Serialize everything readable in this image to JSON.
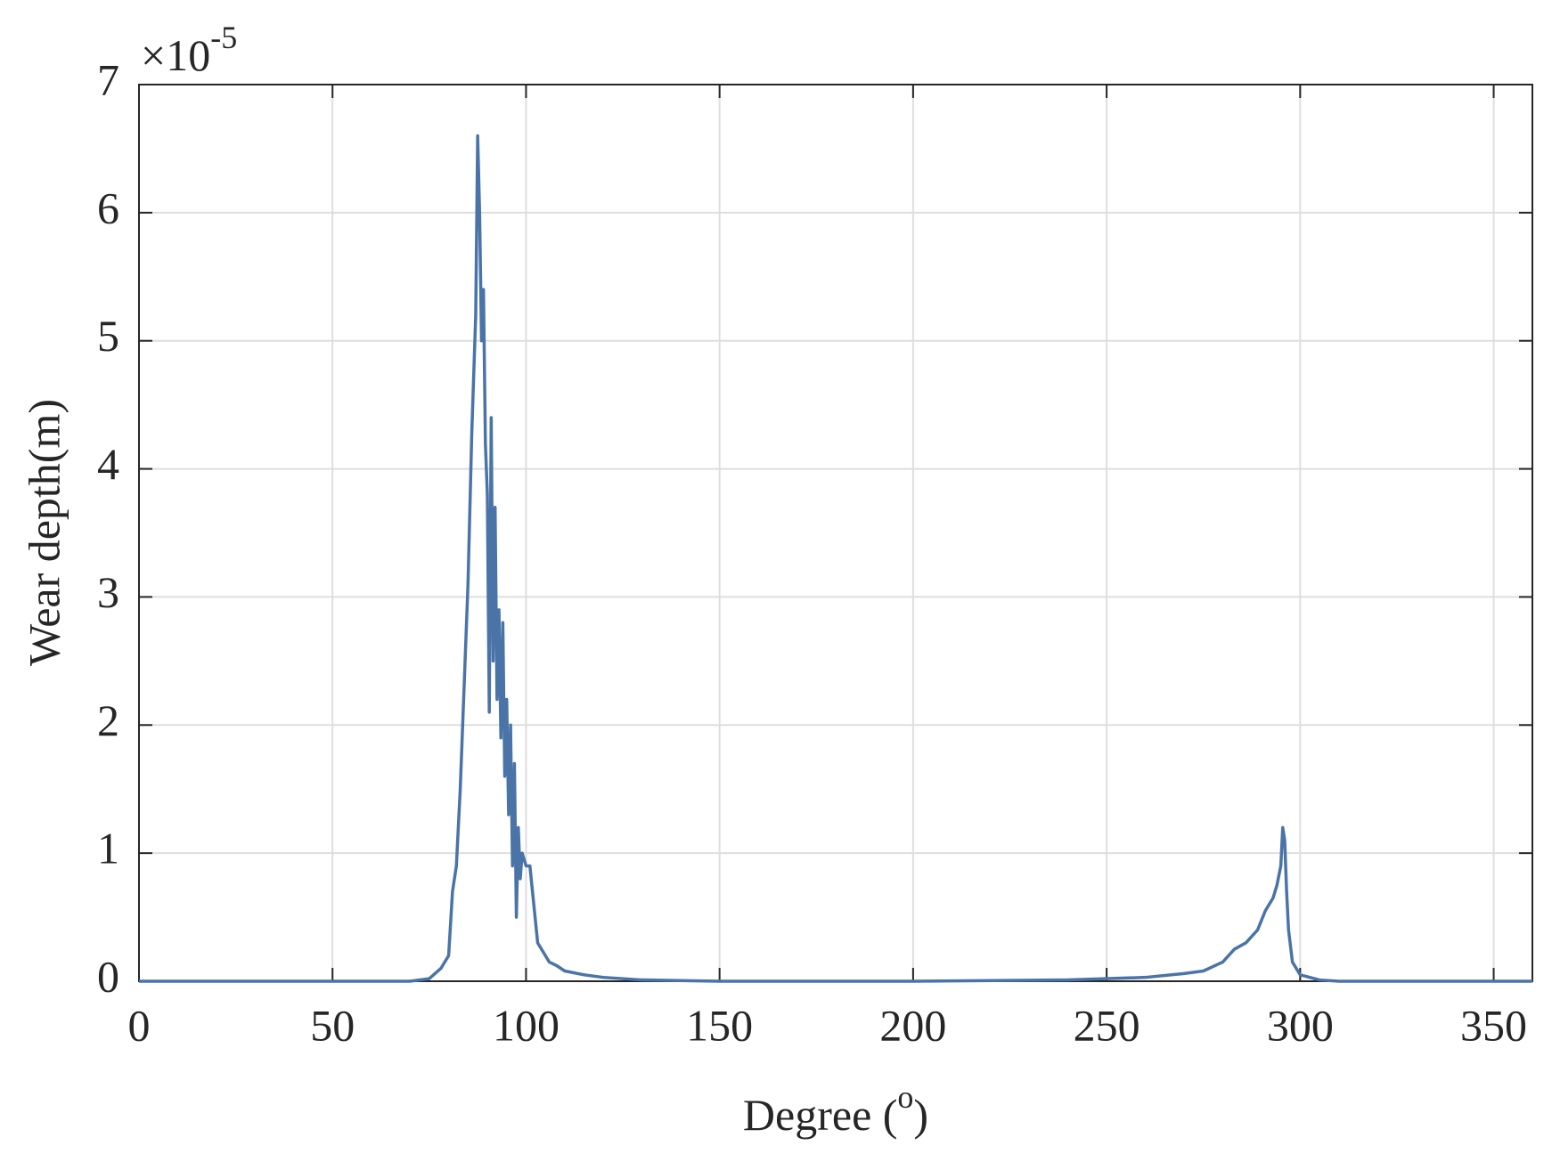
{
  "chart_data": {
    "type": "line",
    "x_label_parts": [
      "Degree (",
      "o",
      ")"
    ],
    "y_label": "Wear depth(m)",
    "y_multiplier": "×10",
    "y_multiplier_exponent": "-5",
    "xlim": [
      0,
      360
    ],
    "xticks": [
      0,
      50,
      100,
      150,
      200,
      250,
      300,
      350
    ],
    "ylim": [
      0,
      7
    ],
    "yticks": [
      0,
      1,
      2,
      3,
      4,
      5,
      6,
      7
    ],
    "grid": true,
    "series": [
      {
        "color": "#4a74a8",
        "x": [
          0,
          10,
          20,
          30,
          40,
          50,
          60,
          70,
          75,
          78,
          80,
          81,
          82,
          83,
          84,
          85,
          86,
          87,
          87.5,
          88,
          88.5,
          89,
          89.5,
          90,
          90.5,
          91,
          91.5,
          92,
          92.5,
          93,
          93.5,
          94,
          94.5,
          95,
          95.5,
          96,
          96.5,
          97,
          97.5,
          98,
          98.5,
          99,
          100,
          101,
          102,
          103,
          104,
          105,
          106,
          108,
          110,
          115,
          120,
          130,
          150,
          200,
          240,
          260,
          270,
          275,
          280,
          283,
          286,
          289,
          291,
          293,
          294,
          295,
          295.5,
          296,
          296.5,
          297,
          298,
          300,
          305,
          310,
          360
        ],
        "values": [
          0,
          0,
          0,
          0,
          0,
          0,
          0,
          0,
          0.02,
          0.1,
          0.2,
          0.7,
          0.9,
          1.5,
          2.3,
          3.1,
          4.3,
          5.2,
          6.6,
          6.0,
          5.0,
          5.4,
          4.2,
          3.8,
          2.1,
          4.4,
          2.5,
          3.7,
          2.2,
          2.9,
          1.9,
          2.8,
          1.6,
          2.2,
          1.3,
          2.0,
          0.9,
          1.7,
          0.5,
          1.2,
          0.8,
          1.0,
          0.9,
          0.9,
          0.6,
          0.3,
          0.25,
          0.2,
          0.15,
          0.12,
          0.08,
          0.05,
          0.03,
          0.01,
          0,
          0,
          0.01,
          0.03,
          0.06,
          0.08,
          0.15,
          0.25,
          0.3,
          0.4,
          0.55,
          0.65,
          0.75,
          0.9,
          1.2,
          1.1,
          0.7,
          0.4,
          0.15,
          0.05,
          0.01,
          0,
          0
        ]
      }
    ]
  }
}
